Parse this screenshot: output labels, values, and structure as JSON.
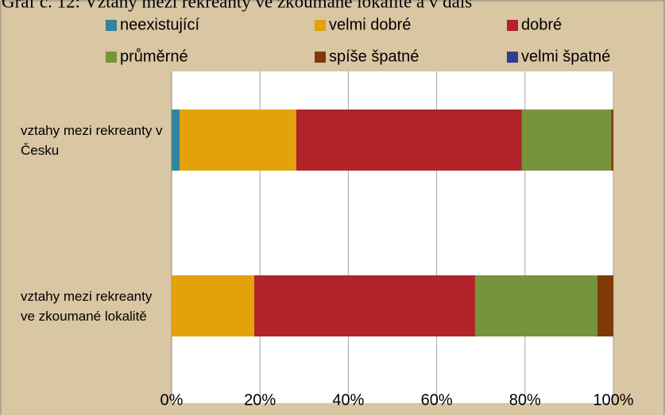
{
  "chart_data": {
    "type": "stacked_bar_horizontal",
    "title": "Graf č. 12: Vztahy mezi rekreanty ve zkoumané lokalitě a v dalš",
    "categories": [
      "vztahy mezi rekreanty v Česku",
      "vztahy mezi rekreanty ve zkoumané lokalitě"
    ],
    "series": [
      {
        "name": "neexistující",
        "color": "#31849b",
        "values": [
          1.8,
          0
        ]
      },
      {
        "name": "velmi dobré",
        "color": "#e3a20a",
        "values": [
          26.4,
          18.7
        ]
      },
      {
        "name": "dobré",
        "color": "#b0242a",
        "values": [
          51.1,
          50.0
        ]
      },
      {
        "name": "průměrné",
        "color": "#77933c",
        "values": [
          20.2,
          27.7
        ]
      },
      {
        "name": "spíše špatné",
        "color": "#7f3a08",
        "values": [
          0.5,
          3.6
        ]
      },
      {
        "name": "velmi špatné",
        "color": "#2f3f8f",
        "values": [
          0,
          0
        ]
      }
    ],
    "xlim": [
      0,
      100
    ],
    "xticks": [
      {
        "value": 0,
        "label": "0%"
      },
      {
        "value": 20,
        "label": "20%"
      },
      {
        "value": 40,
        "label": "40%"
      },
      {
        "value": 60,
        "label": "60%"
      },
      {
        "value": 80,
        "label": "80%"
      },
      {
        "value": 100,
        "label": "100%"
      }
    ],
    "grid": true
  }
}
